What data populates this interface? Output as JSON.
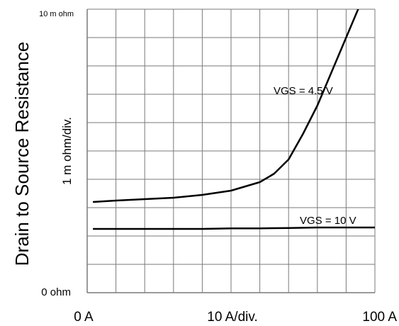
{
  "chart_data": {
    "type": "line",
    "ylabel": "Drain to Source Resistance",
    "y_scale_label": "1 m ohm/div.",
    "x_scale_label": "10 A/div.",
    "xlim": [
      0,
      100
    ],
    "ylim": [
      0,
      10
    ],
    "x_unit": "A",
    "y_unit": "m ohm",
    "grid": true,
    "x_tick_labels": [
      {
        "value": 0,
        "label": "0 A"
      },
      {
        "value": 100,
        "label": "100 A"
      }
    ],
    "y_tick_labels": [
      {
        "value": 0,
        "label": "0 ohm"
      },
      {
        "value": 10,
        "label": "10 m ohm"
      }
    ],
    "series": [
      {
        "name": "VGS = 4.5 V",
        "points": [
          [
            2,
            3.2
          ],
          [
            10,
            3.25
          ],
          [
            20,
            3.3
          ],
          [
            30,
            3.35
          ],
          [
            40,
            3.45
          ],
          [
            50,
            3.6
          ],
          [
            55,
            3.75
          ],
          [
            60,
            3.9
          ],
          [
            65,
            4.2
          ],
          [
            70,
            4.7
          ],
          [
            75,
            5.6
          ],
          [
            80,
            6.6
          ],
          [
            85,
            7.8
          ],
          [
            90,
            9.0
          ],
          [
            95,
            10.2
          ],
          [
            100,
            11.5
          ]
        ]
      },
      {
        "name": "VGS = 10 V",
        "points": [
          [
            2,
            2.25
          ],
          [
            10,
            2.25
          ],
          [
            20,
            2.25
          ],
          [
            30,
            2.25
          ],
          [
            40,
            2.25
          ],
          [
            50,
            2.27
          ],
          [
            60,
            2.27
          ],
          [
            70,
            2.28
          ],
          [
            80,
            2.3
          ],
          [
            90,
            2.3
          ],
          [
            100,
            2.3
          ]
        ]
      }
    ],
    "annotations": [
      {
        "text": "VGS = 4.5 V",
        "series": 0
      },
      {
        "text": "VGS = 10 V",
        "series": 1
      }
    ]
  }
}
